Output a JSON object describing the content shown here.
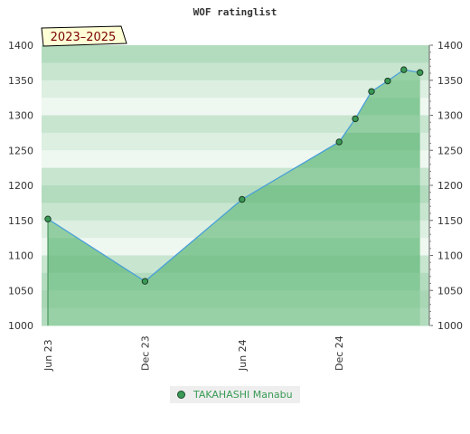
{
  "chart_data": {
    "type": "area",
    "title": "WOF ratinglist",
    "period_badge": "2023–2025",
    "x_ticks": [
      "Jun 23",
      "Dec 23",
      "Jun 24",
      "Dec 24"
    ],
    "ylim": [
      1000,
      1400
    ],
    "y_ticks": [
      1000,
      1050,
      1100,
      1150,
      1200,
      1250,
      1300,
      1350,
      1400
    ],
    "series": [
      {
        "name": "TAKAHASHI Manabu",
        "color": "#3a9a55",
        "x": [
          "2023-06",
          "2023-12",
          "2024-06",
          "2024-12",
          "2025-01",
          "2025-02",
          "2025-03",
          "2025-04",
          "2025-05"
        ],
        "values": [
          1152,
          1063,
          1180,
          1262,
          1295,
          1334,
          1349,
          1365,
          1361
        ]
      }
    ],
    "legend_position": "bottom"
  }
}
